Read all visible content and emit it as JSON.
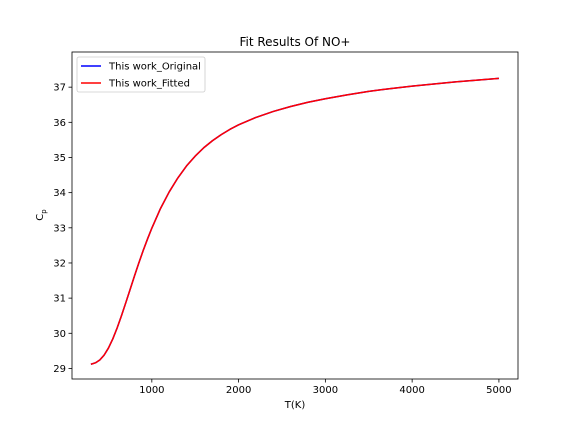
{
  "chart_data": {
    "type": "line",
    "title": "Fit Results Of NO+",
    "xlabel": "T(K)",
    "ylabel_main": "C",
    "ylabel_sub": "p",
    "xlim": [
      80,
      5220
    ],
    "ylim": [
      28.7,
      38.0
    ],
    "xticks": [
      1000,
      2000,
      3000,
      4000,
      5000
    ],
    "yticks": [
      29,
      30,
      31,
      32,
      33,
      34,
      35,
      36,
      37
    ],
    "legend_position": "upper left",
    "series": [
      {
        "name": "This work_Original",
        "color": "#0000ff",
        "x": [
          298,
          350,
          400,
          450,
          500,
          550,
          600,
          650,
          700,
          750,
          800,
          850,
          900,
          950,
          1000,
          1100,
          1200,
          1300,
          1400,
          1500,
          1600,
          1700,
          1800,
          1900,
          2000,
          2200,
          2400,
          2600,
          2800,
          3000,
          3250,
          3500,
          3750,
          4000,
          4250,
          4500,
          4750,
          5000
        ],
        "y": [
          29.12,
          29.16,
          29.24,
          29.38,
          29.58,
          29.84,
          30.15,
          30.5,
          30.87,
          31.25,
          31.63,
          32.0,
          32.35,
          32.68,
          32.99,
          33.55,
          34.02,
          34.42,
          34.76,
          35.04,
          35.28,
          35.48,
          35.65,
          35.8,
          35.93,
          36.14,
          36.31,
          36.45,
          36.57,
          36.67,
          36.78,
          36.88,
          36.96,
          37.03,
          37.09,
          37.15,
          37.2,
          37.25
        ]
      },
      {
        "name": "This work_Fitted",
        "color": "#ff0000",
        "x": [
          298,
          350,
          400,
          450,
          500,
          550,
          600,
          650,
          700,
          750,
          800,
          850,
          900,
          950,
          1000,
          1100,
          1200,
          1300,
          1400,
          1500,
          1600,
          1700,
          1800,
          1900,
          2000,
          2200,
          2400,
          2600,
          2800,
          3000,
          3250,
          3500,
          3750,
          4000,
          4250,
          4500,
          4750,
          5000
        ],
        "y": [
          29.12,
          29.16,
          29.24,
          29.38,
          29.58,
          29.84,
          30.15,
          30.5,
          30.87,
          31.25,
          31.63,
          32.0,
          32.35,
          32.68,
          32.99,
          33.55,
          34.02,
          34.42,
          34.76,
          35.04,
          35.28,
          35.48,
          35.65,
          35.8,
          35.93,
          36.14,
          36.31,
          36.45,
          36.57,
          36.67,
          36.78,
          36.88,
          36.96,
          37.03,
          37.09,
          37.15,
          37.2,
          37.25
        ]
      }
    ]
  }
}
